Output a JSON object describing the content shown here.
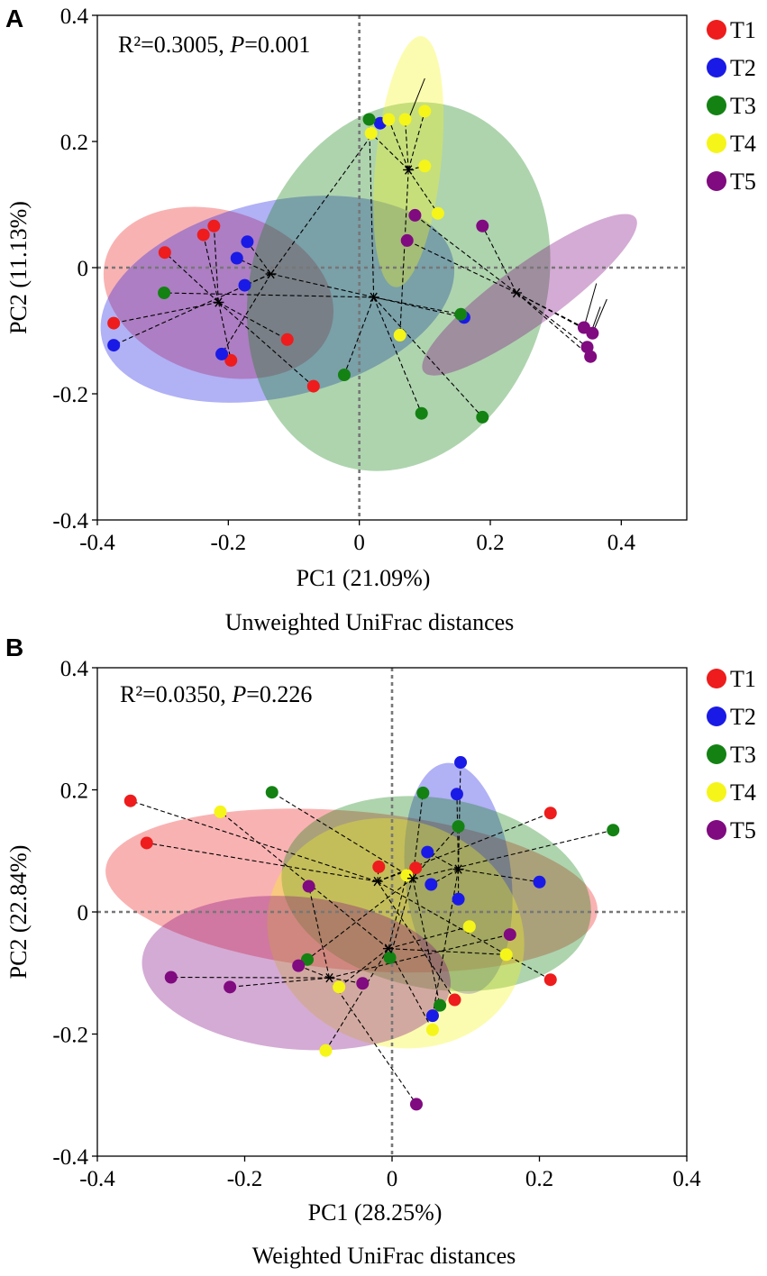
{
  "colors": {
    "T1": "#ee1c1c",
    "T2": "#1a1ae6",
    "T3": "#138213",
    "T4": "#f5f51a",
    "T5": "#800a80"
  },
  "chart_data": [
    {
      "type": "scatter",
      "panel_label": "A",
      "title": "",
      "stat_r2": "R²=0.3005, ",
      "stat_p_label": "P",
      "stat_p_value": "=0.001",
      "xlabel": "PC1 (21.09%)",
      "ylabel": "PC2 (11.13%)",
      "caption": "Unweighted UniFrac distances",
      "xlim": [
        -0.4,
        0.5
      ],
      "ylim": [
        -0.4,
        0.4
      ],
      "xticks": [
        -0.4,
        -0.2,
        0,
        0.2,
        0.4
      ],
      "xtick_labels": [
        "-0.4",
        "-0.2",
        "0",
        "0.2",
        "0.4"
      ],
      "yticks": [
        -0.4,
        -0.2,
        0,
        0.2,
        0.4
      ],
      "ytick_labels": [
        "-0.4",
        "-0.2",
        "0",
        "0.2",
        "0.4"
      ],
      "legend": [
        "T1",
        "T2",
        "T3",
        "T4",
        "T5"
      ],
      "legend_position": "right-outside-top",
      "series": [
        {
          "name": "T1",
          "centroid": [
            -0.215,
            -0.055
          ],
          "ellipse": {
            "cx": -0.215,
            "cy": -0.04,
            "rx": 0.18,
            "ry": 0.13,
            "angle": -18
          },
          "points": [
            [
              -0.375,
              -0.088
            ],
            [
              -0.297,
              0.024
            ],
            [
              -0.238,
              0.052
            ],
            [
              -0.222,
              0.066
            ],
            [
              -0.196,
              -0.147
            ],
            [
              -0.11,
              -0.114
            ],
            [
              -0.07,
              -0.188
            ]
          ]
        },
        {
          "name": "T2",
          "centroid": [
            -0.135,
            -0.01
          ],
          "ellipse": {
            "cx": -0.125,
            "cy": -0.05,
            "rx": 0.275,
            "ry": 0.155,
            "angle": 13
          },
          "points": [
            [
              -0.375,
              -0.123
            ],
            [
              -0.21,
              -0.137
            ],
            [
              -0.187,
              0.015
            ],
            [
              -0.171,
              0.041
            ],
            [
              -0.175,
              -0.028
            ],
            [
              0.032,
              0.229
            ],
            [
              0.16,
              -0.079
            ]
          ]
        },
        {
          "name": "T3",
          "centroid": [
            0.022,
            -0.047
          ],
          "ellipse": {
            "cx": 0.06,
            "cy": -0.03,
            "rx": 0.225,
            "ry": 0.298,
            "angle": -18
          },
          "points": [
            [
              -0.298,
              -0.04
            ],
            [
              -0.023,
              -0.17
            ],
            [
              0.015,
              0.235
            ],
            [
              0.095,
              -0.231
            ],
            [
              0.155,
              -0.074
            ],
            [
              0.188,
              -0.237
            ]
          ]
        },
        {
          "name": "T4",
          "centroid": [
            0.075,
            0.155
          ],
          "ellipse": {
            "cx": 0.075,
            "cy": 0.168,
            "rx": 0.05,
            "ry": 0.2,
            "angle": -6
          },
          "points": [
            [
              0.018,
              0.213
            ],
            [
              0.045,
              0.235
            ],
            [
              0.07,
              0.235
            ],
            [
              0.1,
              0.248
            ],
            [
              0.1,
              0.161
            ],
            [
              0.12,
              0.086
            ],
            [
              0.062,
              -0.107
            ]
          ]
        },
        {
          "name": "T5",
          "centroid": [
            0.24,
            -0.04
          ],
          "ellipse": {
            "cx": 0.26,
            "cy": -0.043,
            "rx": 0.2,
            "ry": 0.048,
            "angle": 36
          },
          "points": [
            [
              0.073,
              0.043
            ],
            [
              0.085,
              0.083
            ],
            [
              0.188,
              0.066
            ],
            [
              0.343,
              -0.095
            ],
            [
              0.348,
              -0.126
            ],
            [
              0.353,
              -0.141
            ],
            [
              0.356,
              -0.104
            ]
          ]
        }
      ]
    },
    {
      "type": "scatter",
      "panel_label": "B",
      "title": "",
      "stat_r2": "R²=0.0350, ",
      "stat_p_label": "P",
      "stat_p_value": "=0.226",
      "xlabel": "PC1 (28.25%)",
      "ylabel": "PC2 (22.84%)",
      "caption": "Weighted UniFrac distances",
      "xlim": [
        -0.4,
        0.4
      ],
      "ylim": [
        -0.4,
        0.4
      ],
      "xticks": [
        -0.4,
        -0.2,
        0,
        0.2,
        0.4
      ],
      "xtick_labels": [
        "-0.4",
        "-0.2",
        "0",
        "0.2",
        "0.4"
      ],
      "yticks": [
        -0.4,
        -0.2,
        0,
        0.2,
        0.4
      ],
      "ytick_labels": [
        "-0.4",
        "-0.2",
        "0",
        "0.2",
        "0.4"
      ],
      "legend": [
        "T1",
        "T2",
        "T3",
        "T4",
        "T5"
      ],
      "legend_position": "right-outside-top",
      "series": [
        {
          "name": "T1",
          "centroid": [
            -0.02,
            0.05
          ],
          "ellipse": {
            "cx": -0.055,
            "cy": 0.035,
            "rx": 0.335,
            "ry": 0.13,
            "angle": -5
          },
          "points": [
            [
              -0.355,
              0.182
            ],
            [
              -0.333,
              0.113
            ],
            [
              -0.018,
              0.074
            ],
            [
              0.032,
              0.072
            ],
            [
              0.085,
              -0.144
            ],
            [
              0.215,
              0.162
            ],
            [
              0.215,
              -0.111
            ]
          ]
        },
        {
          "name": "T2",
          "centroid": [
            0.09,
            0.07
          ],
          "ellipse": {
            "cx": 0.09,
            "cy": 0.055,
            "rx": 0.072,
            "ry": 0.19,
            "angle": 6
          },
          "points": [
            [
              0.048,
              0.098
            ],
            [
              0.053,
              0.045
            ],
            [
              0.055,
              -0.17
            ],
            [
              0.088,
              0.193
            ],
            [
              0.09,
              0.021
            ],
            [
              0.093,
              0.245
            ],
            [
              0.2,
              0.049
            ]
          ]
        },
        {
          "name": "T3",
          "centroid": [
            0.028,
            0.055
          ],
          "ellipse": {
            "cx": 0.06,
            "cy": 0.03,
            "rx": 0.212,
            "ry": 0.156,
            "angle": -10
          },
          "points": [
            [
              -0.163,
              0.196
            ],
            [
              -0.115,
              -0.078
            ],
            [
              -0.003,
              -0.075
            ],
            [
              0.042,
              0.195
            ],
            [
              0.065,
              -0.153
            ],
            [
              0.09,
              0.14
            ],
            [
              0.3,
              0.134
            ]
          ]
        },
        {
          "name": "T4",
          "centroid": [
            -0.005,
            -0.06
          ],
          "ellipse": {
            "cx": 0.005,
            "cy": -0.035,
            "rx": 0.177,
            "ry": 0.185,
            "angle": -20
          },
          "points": [
            [
              -0.233,
              0.164
            ],
            [
              -0.09,
              -0.227
            ],
            [
              -0.072,
              -0.123
            ],
            [
              0.02,
              0.06
            ],
            [
              0.055,
              -0.193
            ],
            [
              0.105,
              -0.024
            ],
            [
              0.155,
              -0.07
            ]
          ]
        },
        {
          "name": "T5",
          "centroid": [
            -0.085,
            -0.108
          ],
          "ellipse": {
            "cx": -0.13,
            "cy": -0.1,
            "rx": 0.21,
            "ry": 0.125,
            "angle": -5
          },
          "points": [
            [
              -0.3,
              -0.107
            ],
            [
              -0.22,
              -0.123
            ],
            [
              -0.127,
              -0.088
            ],
            [
              -0.113,
              0.042
            ],
            [
              -0.04,
              -0.117
            ],
            [
              0.033,
              -0.315
            ],
            [
              0.16,
              -0.037
            ]
          ]
        }
      ]
    }
  ]
}
